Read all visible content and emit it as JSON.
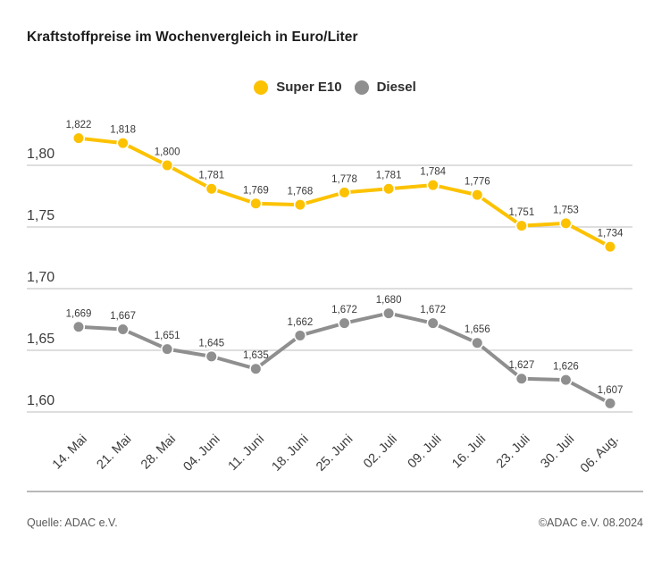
{
  "theme": {
    "accent_yellow": "#FCC200",
    "diesel_gray": "#8F8F8F",
    "grid_color": "#C9C9C9",
    "tick_text_color": "#3C3C3C",
    "data_label_color": "#3A3A3A",
    "title_color": "#1c1c1c",
    "footer_text_color": "#595959"
  },
  "chart_data": {
    "type": "line",
    "title": "Kraftstoffpreise im Wochenvergleich in Euro/Liter",
    "xlabel": "",
    "ylabel": "Euro/Liter",
    "grid": true,
    "legend_position": "top-center",
    "categories": [
      "14. Mai",
      "21. Mai",
      "28. Mai",
      "04. Juni",
      "11. Juni",
      "18. Juni",
      "25. Juni",
      "02. Juli",
      "09. Juli",
      "16. Juli",
      "23. Juli",
      "30. Juli",
      "06. Aug."
    ],
    "y_axis": {
      "ticks": [
        1.8,
        1.75,
        1.7,
        1.65,
        1.6
      ],
      "tick_labels": [
        "1,80",
        "1,75",
        "1,70",
        "1,65",
        "1,60"
      ],
      "ylim": [
        1.585,
        1.845
      ]
    },
    "series": [
      {
        "name": "Super E10",
        "color": "#FCC200",
        "values": [
          1.822,
          1.818,
          1.8,
          1.781,
          1.769,
          1.768,
          1.778,
          1.781,
          1.784,
          1.776,
          1.751,
          1.753,
          1.734
        ],
        "labels": [
          "1,822",
          "1,818",
          "1,800",
          "1,781",
          "1,769",
          "1,768",
          "1,778",
          "1,781",
          "1,784",
          "1,776",
          "1,751",
          "1,753",
          "1,734"
        ]
      },
      {
        "name": "Diesel",
        "color": "#8F8F8F",
        "values": [
          1.669,
          1.667,
          1.651,
          1.645,
          1.635,
          1.662,
          1.672,
          1.68,
          1.672,
          1.656,
          1.627,
          1.626,
          1.607
        ],
        "labels": [
          "1,669",
          "1,667",
          "1,651",
          "1,645",
          "1,635",
          "1,662",
          "1,672",
          "1,680",
          "1,672",
          "1,656",
          "1,627",
          "1,626",
          "1,607"
        ]
      }
    ]
  },
  "footer": {
    "source": "Quelle: ADAC e.V.",
    "copyright": "©ADAC e.V. 08.2024"
  }
}
